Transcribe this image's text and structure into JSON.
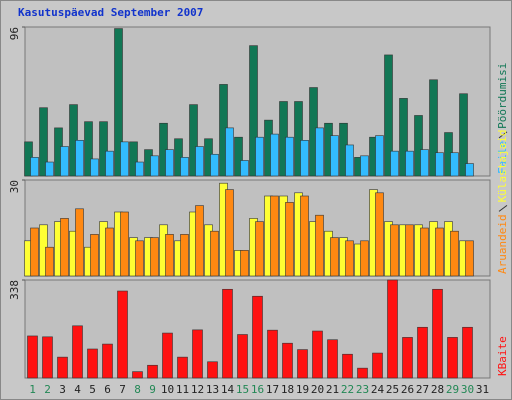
{
  "title": "Kasutuspäevad September 2007",
  "chart_data": [
    {
      "type": "bar",
      "ylim": [
        0,
        96
      ],
      "yticks": [
        96
      ],
      "series": [
        {
          "name": "Faile",
          "color": "#33bbff",
          "values": [
            12,
            9,
            19,
            23,
            11,
            16,
            22,
            9,
            13,
            17,
            12,
            19,
            14,
            31,
            10,
            25,
            27,
            25,
            23,
            31,
            26,
            20,
            13,
            26,
            16,
            16,
            17,
            15,
            15,
            8,
            null
          ]
        },
        {
          "name": "Pöördumisi",
          "color": "#117755",
          "values": [
            22,
            44,
            31,
            46,
            35,
            35,
            95,
            22,
            17,
            34,
            24,
            46,
            24,
            59,
            25,
            84,
            36,
            48,
            48,
            57,
            34,
            34,
            12,
            25,
            78,
            50,
            39,
            62,
            28,
            53,
            null
          ]
        }
      ]
    },
    {
      "type": "bar",
      "ylim": [
        0,
        30
      ],
      "yticks": [
        30
      ],
      "series": [
        {
          "name": "Aruandeid",
          "color": "#ff8811",
          "values": [
            15,
            9,
            18,
            21,
            13,
            15,
            20,
            11,
            12,
            13,
            13,
            22,
            14,
            27,
            8,
            17,
            25,
            23,
            25,
            19,
            12,
            11,
            11,
            26,
            16,
            16,
            15,
            15,
            14,
            11,
            null
          ]
        },
        {
          "name": "Külastajaid",
          "color": "#ffff33",
          "values": [
            11,
            16,
            17,
            14,
            9,
            17,
            20,
            12,
            12,
            16,
            11,
            20,
            16,
            29,
            8,
            18,
            25,
            25,
            26,
            17,
            14,
            12,
            10,
            27,
            17,
            16,
            16,
            17,
            17,
            11,
            null
          ]
        }
      ]
    },
    {
      "type": "bar",
      "ylim": [
        0,
        338
      ],
      "yticks": [
        338
      ],
      "categories": [
        "1",
        "2",
        "3",
        "4",
        "5",
        "6",
        "7",
        "8",
        "9",
        "10",
        "11",
        "12",
        "13",
        "14",
        "15",
        "16",
        "17",
        "18",
        "19",
        "20",
        "21",
        "22",
        "23",
        "24",
        "25",
        "26",
        "27",
        "28",
        "29",
        "30",
        "31"
      ],
      "category_colors": [
        "#228855",
        "#228855",
        "#222222",
        "#222222",
        "#222222",
        "#222222",
        "#222222",
        "#228855",
        "#228855",
        "#222222",
        "#222222",
        "#222222",
        "#222222",
        "#222222",
        "#228855",
        "#228855",
        "#222222",
        "#222222",
        "#222222",
        "#222222",
        "#222222",
        "#228855",
        "#228855",
        "#222222",
        "#222222",
        "#222222",
        "#222222",
        "#222222",
        "#228855",
        "#228855",
        "#222222"
      ],
      "series": [
        {
          "name": "KBaite",
          "color": "#ff1111",
          "values": [
            145,
            142,
            72,
            180,
            100,
            117,
            300,
            22,
            44,
            155,
            72,
            166,
            56,
            306,
            150,
            282,
            165,
            120,
            98,
            162,
            132,
            82,
            34,
            86,
            338,
            140,
            175,
            306,
            140,
            175,
            null
          ]
        }
      ]
    }
  ]
}
